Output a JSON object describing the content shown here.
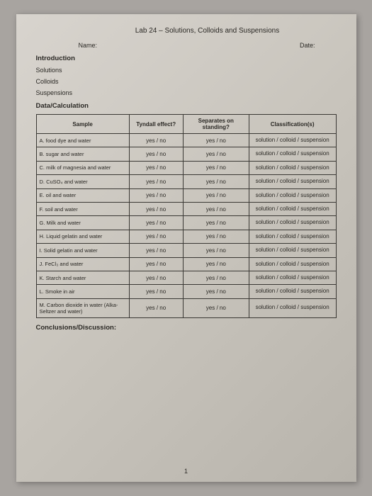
{
  "title": "Lab 24 – Solutions, Colloids and Suspensions",
  "labels": {
    "name": "Name:",
    "date": "Date:",
    "intro": "Introduction",
    "solutions": "Solutions",
    "colloids": "Colloids",
    "suspensions": "Suspensions",
    "data_calc": "Data/Calculation",
    "conclusions": "Conclusions/Discussion:"
  },
  "table": {
    "headers": {
      "sample": "Sample",
      "tyndall": "Tyndall effect?",
      "separates": "Separates on standing?",
      "classification": "Classification(s)"
    },
    "yn": "yes / no",
    "class_text": "solution / colloid / suspension",
    "samples": [
      "A.  food dye and water",
      "B.  sugar and water",
      "C.  milk of magnesia and water",
      "D.  CuSO₄ and water",
      "E.  oil and water",
      "F.  soil and water",
      "G.  Milk and water",
      "H.  Liquid gelatin and water",
      "I.   Solid gelatin and water",
      "J.   FeCl₃ and water",
      "K.  Starch and water",
      "L.   Smoke in air",
      "M.  Carbon dioxide in water (Alka-Seltzer and water)"
    ]
  },
  "page_num": "1"
}
